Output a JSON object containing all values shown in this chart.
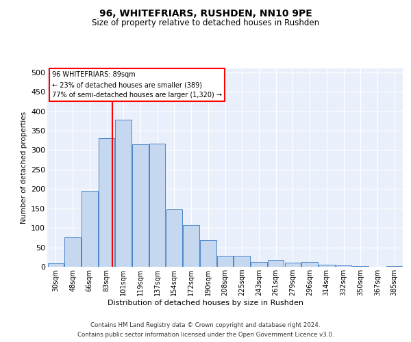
{
  "title": "96, WHITEFRIARS, RUSHDEN, NN10 9PE",
  "subtitle": "Size of property relative to detached houses in Rushden",
  "xlabel": "Distribution of detached houses by size in Rushden",
  "ylabel": "Number of detached properties",
  "footnote1": "Contains HM Land Registry data © Crown copyright and database right 2024.",
  "footnote2": "Contains public sector information licensed under the Open Government Licence v3.0.",
  "bar_labels": [
    "30sqm",
    "48sqm",
    "66sqm",
    "83sqm",
    "101sqm",
    "119sqm",
    "137sqm",
    "154sqm",
    "172sqm",
    "190sqm",
    "208sqm",
    "225sqm",
    "243sqm",
    "261sqm",
    "279sqm",
    "296sqm",
    "314sqm",
    "332sqm",
    "350sqm",
    "367sqm",
    "385sqm"
  ],
  "bar_values": [
    8,
    75,
    195,
    330,
    378,
    315,
    316,
    148,
    108,
    68,
    28,
    28,
    12,
    18,
    10,
    12,
    6,
    3,
    2,
    0,
    1
  ],
  "bin_starts": [
    30,
    48,
    66,
    83,
    101,
    119,
    137,
    154,
    172,
    190,
    208,
    225,
    243,
    261,
    279,
    296,
    314,
    332,
    350,
    367,
    385
  ],
  "bar_color": "#c5d8f0",
  "bar_edge_color": "#4a86c8",
  "property_sqm": 89,
  "property_label": "96 WHITEFRIARS: 89sqm",
  "annotation_line1": "← 23% of detached houses are smaller (389)",
  "annotation_line2": "77% of semi-detached houses are larger (1,320) →",
  "ylim": [
    0,
    510
  ],
  "yticks": [
    0,
    50,
    100,
    150,
    200,
    250,
    300,
    350,
    400,
    450,
    500
  ],
  "background_color": "#eaf0fb",
  "title_fontsize": 10,
  "subtitle_fontsize": 8.5
}
